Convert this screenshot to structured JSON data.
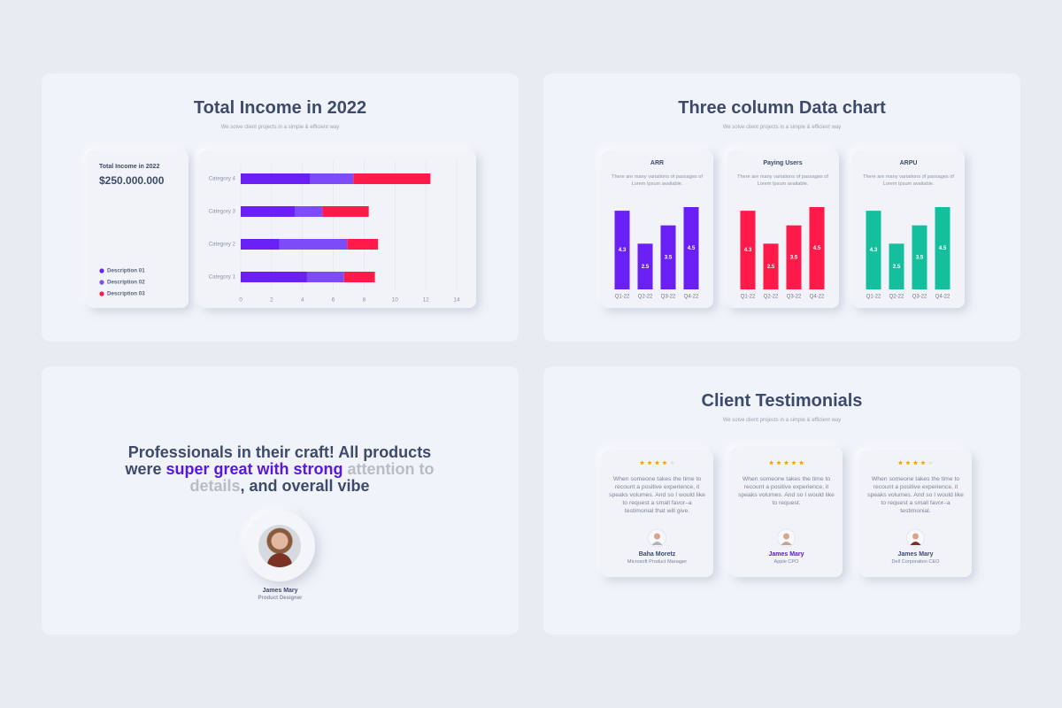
{
  "income_panel": {
    "title": "Total Income in 2022",
    "subtitle": "We solve client projects in a simple & efficient way",
    "card_label": "Total Income in 2022",
    "card_value": "$250.000.000"
  },
  "columns_panel": {
    "title": "Three column Data chart",
    "subtitle": "We solve client projects in a simple & efficient way"
  },
  "quote_panel": {
    "segments": [
      {
        "text": "Professionals in their craft! All products were ",
        "color": "#3d4a6b"
      },
      {
        "text": "super great with strong",
        "color": "#5a17e0"
      },
      {
        "text": " attention to details",
        "color": "#b9bcc4"
      },
      {
        "text": ", and overall vibe",
        "color": "#3d4a6b"
      }
    ],
    "name": "James Mary",
    "role": "Product Designer"
  },
  "testimonials_panel": {
    "title": "Client Testimonials",
    "subtitle": "We solve client projects in a simple & efficient way",
    "items": [
      {
        "rating": 4,
        "text": "When someone takes the time to recount a positive experience, it speaks volumes. And so I would like to request a small favor–a testimonial that will give.",
        "name": "Baha Moretz",
        "role": "Microsoft Product Manager"
      },
      {
        "rating": 5,
        "text": "When someone takes the time to recount a positive experience, it speaks volumes. And so I would like to request.",
        "name": "James Mary",
        "role": "Apple CPO"
      },
      {
        "rating": 4,
        "text": "When someone takes the time to recount a positive experience, it speaks volumes. And so I would like to request a small favor–a testimonial.",
        "name": "James Mary",
        "role": "Dell Corporation CEO"
      }
    ]
  },
  "chart_data": [
    {
      "type": "hbar",
      "stacked": true,
      "categories": [
        "Category 1",
        "Category 2",
        "Category 3",
        "Category 4"
      ],
      "series": [
        {
          "name": "Description 01",
          "color": "#6a1ff5",
          "values": [
            4.3,
            2.5,
            3.5,
            4.5
          ]
        },
        {
          "name": "Description 02",
          "color": "#7d4cf8",
          "values": [
            2.4,
            4.4,
            1.8,
            2.8
          ]
        },
        {
          "name": "Description 03",
          "color": "#ff1a4a",
          "values": [
            2,
            2,
            3,
            5
          ]
        }
      ],
      "xlim": [
        0,
        14
      ],
      "xticks": [
        0,
        2,
        4,
        6,
        8,
        10,
        12,
        14
      ],
      "grid": true
    },
    {
      "type": "column",
      "title": "ARR",
      "description": "There are many variations of passages of Lorem Ipsum available.",
      "categories": [
        "Q1-22",
        "Q2-22",
        "Q3-22",
        "Q4-22"
      ],
      "values": [
        4.3,
        2.5,
        3.5,
        4.5
      ],
      "color": "#6a1ff5"
    },
    {
      "type": "column",
      "title": "Paying Users",
      "description": "There are many variations of passages of Lorem Ipsum available.",
      "categories": [
        "Q1-22",
        "Q2-22",
        "Q3-22",
        "Q4-22"
      ],
      "values": [
        4.3,
        2.5,
        3.5,
        4.5
      ],
      "color": "#ff1a4a"
    },
    {
      "type": "column",
      "title": "ARPU",
      "description": "There are many variations of passages of Lorem Ipsum available.",
      "categories": [
        "Q1-22",
        "Q2-22",
        "Q3-22",
        "Q4-22"
      ],
      "values": [
        4.3,
        2.5,
        3.5,
        4.5
      ],
      "color": "#14bf9e"
    }
  ]
}
